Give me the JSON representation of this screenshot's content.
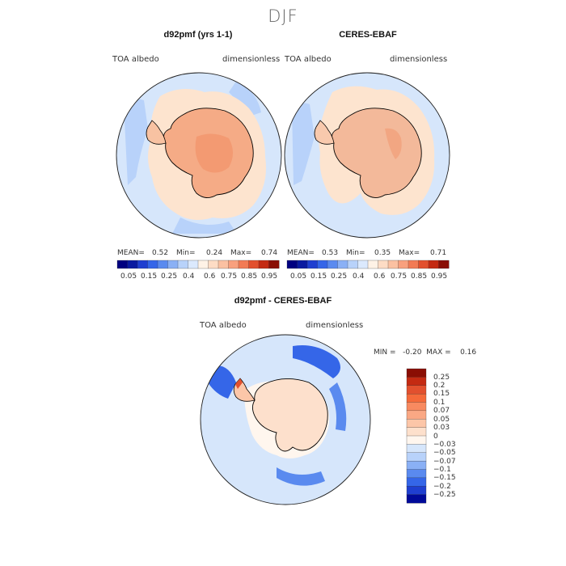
{
  "page": {
    "season": "DJF"
  },
  "colors": {
    "hbar": [
      "#000080",
      "#0a1aa0",
      "#1f3fd0",
      "#3566e8",
      "#5a8aef",
      "#8ab0f5",
      "#b8d2fa",
      "#dbe9fd",
      "#fef2e6",
      "#fddcc5",
      "#fbc1a2",
      "#f8a07e",
      "#f27b55",
      "#e2502e",
      "#c42a12",
      "#8a0e04"
    ],
    "vbar": [
      "#8a0e04",
      "#c42a12",
      "#e2502e",
      "#f56a3a",
      "#f88a60",
      "#faa884",
      "#fcc6a8",
      "#fde0cc",
      "#fff6ee",
      "#d6e6fb",
      "#b8d2fa",
      "#8ab0f5",
      "#5a8aef",
      "#3566e8",
      "#1f3fd0",
      "#000a99"
    ],
    "ocean_light": "#d6e6fb",
    "ice_pale": "#fde4cf",
    "land_model": "#f5ab86",
    "land_obs": "#f3b99a"
  },
  "panels": {
    "left": {
      "title": "d92pmf (yrs 1-1)",
      "variable": "TOA albedo",
      "units": "dimensionless",
      "mean_label": "MEAN=",
      "mean": "0.52",
      "min_label": "Min=",
      "min": "0.24",
      "max_label": "Max=",
      "max": "0.74"
    },
    "right": {
      "title": "CERES-EBAF",
      "variable": "TOA albedo",
      "units": "dimensionless",
      "mean_label": "MEAN=",
      "mean": "0.53",
      "min_label": "Min=",
      "min": "0.35",
      "max_label": "Max=",
      "max": "0.71"
    },
    "diff": {
      "title": "d92pmf - CERES-EBAF",
      "variable": "TOA albedo",
      "units": "dimensionless",
      "stats": "MIN =   -0.20  MAX =    0.16"
    }
  },
  "chart_data": [
    {
      "type": "heatmap",
      "title": "d92pmf (yrs 1-1)",
      "projection": "south-polar stereographic",
      "variable": "TOA albedo",
      "units": "dimensionless",
      "mean": 0.52,
      "min": 0.24,
      "max": 0.74,
      "colorbar_ticks": [
        "0.05",
        "0.15",
        "0.25",
        "0.4",
        "0.6",
        "0.75",
        "0.85",
        "0.95"
      ]
    },
    {
      "type": "heatmap",
      "title": "CERES-EBAF",
      "projection": "south-polar stereographic",
      "variable": "TOA albedo",
      "units": "dimensionless",
      "mean": 0.53,
      "min": 0.35,
      "max": 0.71,
      "colorbar_ticks": [
        "0.05",
        "0.15",
        "0.25",
        "0.4",
        "0.6",
        "0.75",
        "0.85",
        "0.95"
      ]
    },
    {
      "type": "heatmap",
      "title": "d92pmf - CERES-EBAF",
      "projection": "south-polar stereographic",
      "variable": "TOA albedo",
      "units": "dimensionless",
      "min": -0.2,
      "max": 0.16,
      "colorbar_ticks": [
        "0.25",
        "0.2",
        "0.15",
        "0.1",
        "0.07",
        "0.05",
        "0.03",
        "0",
        "−0.03",
        "−0.05",
        "−0.07",
        "−0.1",
        "−0.15",
        "−0.2",
        "−0.25"
      ]
    }
  ]
}
